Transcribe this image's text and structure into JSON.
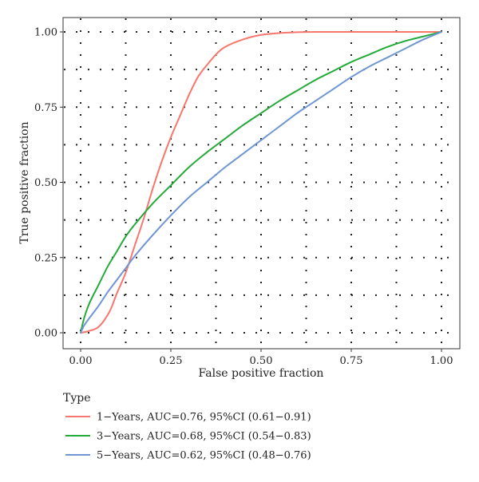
{
  "chart_data": {
    "type": "line",
    "title": "",
    "xlabel": "False positive fraction",
    "ylabel": "True positive fraction",
    "xlim": [
      0,
      1
    ],
    "ylim": [
      0,
      1
    ],
    "grid": "dotted",
    "x_ticks": [
      "0.00",
      "0.25",
      "0.50",
      "0.75",
      "1.00"
    ],
    "y_ticks": [
      "0.00",
      "0.25",
      "0.50",
      "0.75",
      "1.00"
    ],
    "legend": {
      "title": "Type",
      "placement": "bottom"
    },
    "series": [
      {
        "name": "1−Years, AUC=0.76, 95%CI (0.61−0.91)",
        "color": "#F8766D",
        "x": [
          0,
          0.02,
          0.05,
          0.08,
          0.1,
          0.125,
          0.15,
          0.175,
          0.2,
          0.225,
          0.25,
          0.275,
          0.3,
          0.325,
          0.35,
          0.375,
          0.4,
          0.45,
          0.5,
          0.55,
          0.6,
          0.65,
          0.7,
          0.75,
          0.8,
          0.85,
          0.9,
          0.95,
          1.0
        ],
        "y": [
          0,
          0.005,
          0.02,
          0.07,
          0.13,
          0.2,
          0.29,
          0.38,
          0.48,
          0.57,
          0.65,
          0.72,
          0.79,
          0.85,
          0.89,
          0.925,
          0.95,
          0.975,
          0.99,
          0.996,
          0.999,
          1.0,
          1.0,
          1.0,
          1.0,
          1.0,
          1.0,
          1.0,
          1.0
        ]
      },
      {
        "name": "3−Years, AUC=0.68, 95%CI (0.54−0.83)",
        "color": "#24A93A",
        "x": [
          0,
          0.01,
          0.025,
          0.05,
          0.075,
          0.1,
          0.125,
          0.15,
          0.2,
          0.25,
          0.3,
          0.35,
          0.4,
          0.45,
          0.5,
          0.55,
          0.6,
          0.65,
          0.7,
          0.75,
          0.8,
          0.85,
          0.9,
          0.95,
          1.0
        ],
        "y": [
          0,
          0.05,
          0.1,
          0.16,
          0.22,
          0.27,
          0.32,
          0.36,
          0.43,
          0.49,
          0.55,
          0.6,
          0.645,
          0.69,
          0.73,
          0.77,
          0.805,
          0.84,
          0.87,
          0.9,
          0.925,
          0.95,
          0.97,
          0.985,
          1.0
        ]
      },
      {
        "name": "5−Years, AUC=0.62, 95%CI (0.48−0.76)",
        "color": "#6F95D5",
        "x": [
          0,
          0.01,
          0.025,
          0.05,
          0.075,
          0.1,
          0.125,
          0.15,
          0.2,
          0.25,
          0.3,
          0.35,
          0.4,
          0.45,
          0.5,
          0.55,
          0.6,
          0.65,
          0.7,
          0.75,
          0.8,
          0.85,
          0.9,
          0.95,
          1.0
        ],
        "y": [
          0,
          0.025,
          0.05,
          0.09,
          0.135,
          0.175,
          0.215,
          0.255,
          0.325,
          0.39,
          0.45,
          0.5,
          0.55,
          0.595,
          0.64,
          0.685,
          0.73,
          0.77,
          0.81,
          0.85,
          0.885,
          0.915,
          0.945,
          0.975,
          1.0
        ]
      }
    ]
  }
}
